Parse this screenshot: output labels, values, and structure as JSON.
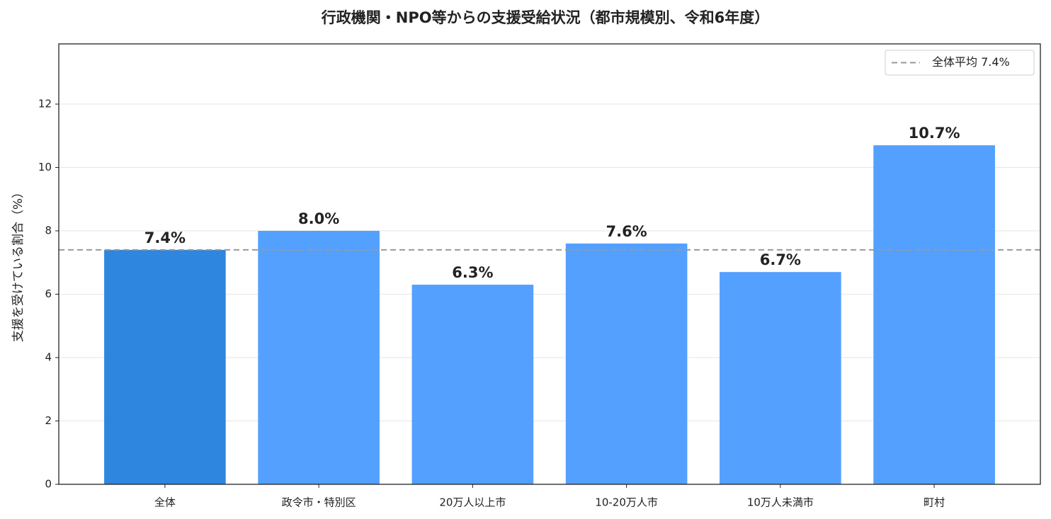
{
  "chart_data": {
    "type": "bar",
    "title": "行政機関・NPO等からの支援受給状況（都市規模別、令和6年度）",
    "ylabel": "支援を受けている割合（%）",
    "categories": [
      "全体",
      "政令市・特別区",
      "20万人以上市",
      "10-20万人市",
      "10万人未満市",
      "町村"
    ],
    "values": [
      7.4,
      8.0,
      6.3,
      7.6,
      6.7,
      10.7
    ],
    "value_labels": [
      "7.4%",
      "8.0%",
      "6.3%",
      "7.6%",
      "6.7%",
      "10.7%"
    ],
    "colors": [
      "#2e86de",
      "#54a0ff",
      "#54a0ff",
      "#54a0ff",
      "#54a0ff",
      "#54a0ff"
    ],
    "ylim": [
      0,
      13.9
    ],
    "yticks": [
      0,
      2,
      4,
      6,
      8,
      10,
      12
    ],
    "grid": true,
    "reference_line": {
      "value": 7.4,
      "label": "全体平均 7.4%",
      "color": "#999999"
    },
    "legend": "upper right"
  }
}
